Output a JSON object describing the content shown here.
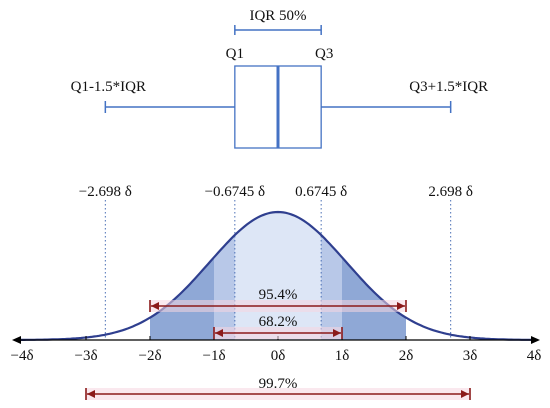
{
  "colors": {
    "box": "#4472c4",
    "curve": "#2f3f8f",
    "fill_center": "#dde6f6",
    "fill_band": "#b8c8e8",
    "fill_tail": "#8fa8d6",
    "range_arrow": "#8b1a1a",
    "range_highlight": "#f6d6e0",
    "dotted": "#4a6fb5",
    "axis": "#000000"
  },
  "boxplot": {
    "iqr_label": "IQR 50%",
    "q1_label": "Q1",
    "q3_label": "Q3",
    "lower_whisker_label": "Q1-1.5*IQR",
    "upper_whisker_label": "Q3+1.5*IQR",
    "q1": -0.6745,
    "median": 0,
    "q3": 0.6745,
    "lower_whisker": -2.698,
    "upper_whisker": 2.698
  },
  "markers": [
    {
      "label": "−2.698 δ",
      "value": -2.698
    },
    {
      "label": "−0.6745 δ",
      "value": -0.6745
    },
    {
      "label": "0.6745 δ",
      "value": 0.6745
    },
    {
      "label": "2.698 δ",
      "value": 2.698
    }
  ],
  "axis": {
    "min": -4,
    "max": 4,
    "ticks": [
      {
        "value": -4,
        "label": "−4δ"
      },
      {
        "value": -3,
        "label": "−3δ"
      },
      {
        "value": -2,
        "label": "−2δ"
      },
      {
        "value": -1,
        "label": "−1δ"
      },
      {
        "value": 0,
        "label": "0δ"
      },
      {
        "value": 1,
        "label": "1δ"
      },
      {
        "value": 2,
        "label": "2δ"
      },
      {
        "value": 3,
        "label": "3δ"
      },
      {
        "value": 4,
        "label": "4δ"
      }
    ]
  },
  "ranges": [
    {
      "label": "95.4%",
      "from": -2,
      "to": 2
    },
    {
      "label": "68.2%",
      "from": -1,
      "to": 1
    },
    {
      "label": "99.7%",
      "from": -3,
      "to": 3
    }
  ]
}
